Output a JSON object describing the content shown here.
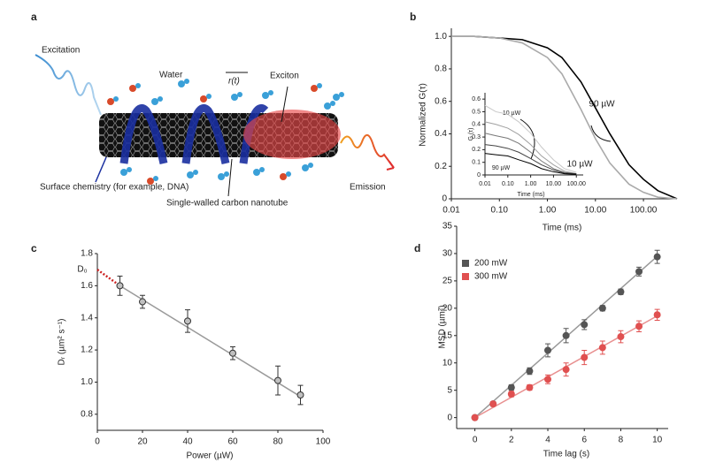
{
  "diagram": {
    "label": "a",
    "excitation": "Excitation",
    "water": "Water",
    "position": "r(t)",
    "exciton": "Exciton",
    "surface_chemistry": "Surface chemistry (for example, DNA)",
    "nanotube": "Single-walled carbon nanotube",
    "emission": "Emission"
  },
  "chart_data": [
    {
      "label": "b",
      "type": "line",
      "xscale": "log",
      "xlabel": "Time (ms)",
      "ylabel": "Normalized G(τ)",
      "x": [
        0.01,
        0.03,
        0.1,
        0.3,
        1,
        2,
        5,
        10,
        20,
        50,
        100,
        200,
        500
      ],
      "series": [
        {
          "color": "#000000",
          "values": [
            1.0,
            1.0,
            0.99,
            0.98,
            0.93,
            0.87,
            0.72,
            0.56,
            0.4,
            0.21,
            0.12,
            0.05,
            0.0
          ]
        },
        {
          "color": "#aaaaaa",
          "values": [
            1.0,
            1.0,
            0.99,
            0.96,
            0.87,
            0.77,
            0.55,
            0.37,
            0.22,
            0.09,
            0.04,
            0.01,
            0.0
          ]
        }
      ],
      "xlim": [
        0.01,
        500
      ],
      "xticks": [
        0.01,
        {
          "value": 0.1,
          "label": "0.10"
        },
        {
          "value": 1,
          "label": "1.00"
        },
        {
          "value": 10,
          "label": "10.00"
        },
        {
          "value": 100,
          "label": "100.00"
        }
      ],
      "ylim": [
        0,
        1.05
      ],
      "yticks": [
        0,
        0.2,
        0.4,
        0.6,
        0.8,
        {
          "value": 1,
          "label": "1.0"
        }
      ],
      "annotations": [
        "90 µW",
        "10 µW"
      ]
    },
    {
      "type": "line",
      "xscale": "log",
      "xlabel": "Time (ms)",
      "ylabel": "G (τ)",
      "x": [
        0.01,
        0.03,
        0.1,
        0.3,
        1,
        3,
        10,
        30,
        100
      ],
      "series": [
        {
          "color": "#c8c8c8",
          "values": [
            0.55,
            0.5,
            0.48,
            0.42,
            0.33,
            0.22,
            0.12,
            0.05,
            0.02
          ]
        },
        {
          "color": "#a0a0a0",
          "values": [
            0.42,
            0.4,
            0.37,
            0.32,
            0.24,
            0.15,
            0.08,
            0.03,
            0.01
          ]
        },
        {
          "color": "#787878",
          "values": [
            0.33,
            0.31,
            0.29,
            0.25,
            0.18,
            0.11,
            0.05,
            0.02,
            0.01
          ]
        },
        {
          "color": "#444444",
          "values": [
            0.24,
            0.23,
            0.21,
            0.18,
            0.13,
            0.08,
            0.04,
            0.015,
            0.01
          ]
        },
        {
          "color": "#000000",
          "values": [
            0.17,
            0.16,
            0.15,
            0.12,
            0.09,
            0.05,
            0.025,
            0.01,
            0.005
          ]
        }
      ],
      "xlim": [
        0.01,
        200
      ],
      "xticks": [
        0.01,
        {
          "value": 0.1,
          "label": "0.10"
        },
        {
          "value": 1,
          "label": "1.00"
        },
        {
          "value": 10,
          "label": "10.00"
        },
        {
          "value": 100,
          "label": "100.00"
        }
      ],
      "ylim": [
        0,
        0.65
      ],
      "yticks": [
        0,
        0.1,
        0.2,
        0.3,
        0.4,
        0.5,
        0.6
      ],
      "annotations": [
        "10 µW",
        "90 µW"
      ]
    },
    {
      "label": "c",
      "type": "scatter",
      "xlabel": "Power (µW)",
      "ylabel": "Dᵣ (µm² s⁻¹)",
      "x": [
        10,
        20,
        40,
        60,
        80,
        90
      ],
      "series": [
        {
          "color": "#c0c0c0",
          "values": [
            1.6,
            1.5,
            1.38,
            1.18,
            1.01,
            0.92
          ],
          "errors": [
            0.06,
            0.04,
            0.07,
            0.04,
            0.09,
            0.06
          ],
          "fit": {
            "x": [
              10,
              90
            ],
            "values": [
              1.6,
              0.91
            ],
            "color": "#9a9a9a"
          }
        }
      ],
      "extrapolation": {
        "x": [
          0,
          10
        ],
        "values": [
          1.7,
          1.6
        ],
        "color": "#cc2222"
      },
      "xlim": [
        0,
        100
      ],
      "xticks": [
        0,
        20,
        40,
        60,
        80,
        100
      ],
      "ylim": [
        0.7,
        1.8
      ],
      "yticks": [
        0.8,
        {
          "value": 1,
          "label": "1.0"
        },
        1.2,
        1.4,
        1.6,
        1.8
      ],
      "annotations": [
        "D₀"
      ]
    },
    {
      "label": "d",
      "type": "scatter",
      "xlabel": "Time lag (s)",
      "ylabel": "MSD (µm²)",
      "legend": "top-left",
      "x": [
        0,
        1,
        2,
        3,
        4,
        5,
        6,
        7,
        8,
        9,
        10
      ],
      "series": [
        {
          "name": "200 mW",
          "color": "#555555",
          "values": [
            0,
            2.5,
            5.5,
            8.5,
            12.3,
            15,
            17,
            20,
            23,
            26.7,
            29.4
          ],
          "errors": [
            0.3,
            0.4,
            0.5,
            0.6,
            1.2,
            1.3,
            0.9,
            0.5,
            0.5,
            0.8,
            1.2
          ],
          "fit": {
            "x": [
              0,
              10
            ],
            "values": [
              0,
              29.5
            ],
            "color": "#999999"
          }
        },
        {
          "name": "300 mW",
          "color": "#e05050",
          "values": [
            0,
            2.5,
            4.3,
            5.5,
            7,
            8.8,
            11,
            12.8,
            14.8,
            16.7,
            18.8
          ],
          "errors": [
            0.3,
            0.4,
            0.5,
            0.5,
            0.8,
            1.2,
            1.3,
            1.2,
            1.1,
            1.0,
            1.0
          ],
          "fit": {
            "x": [
              0,
              10
            ],
            "values": [
              0,
              18.6
            ],
            "color": "#e89090"
          }
        }
      ],
      "xlim": [
        -1,
        10.6
      ],
      "xticks": [
        0,
        2,
        4,
        6,
        8,
        10
      ],
      "ylim": [
        -2,
        35
      ],
      "yticks": [
        0,
        5,
        10,
        15,
        20,
        25,
        30,
        35
      ]
    }
  ]
}
